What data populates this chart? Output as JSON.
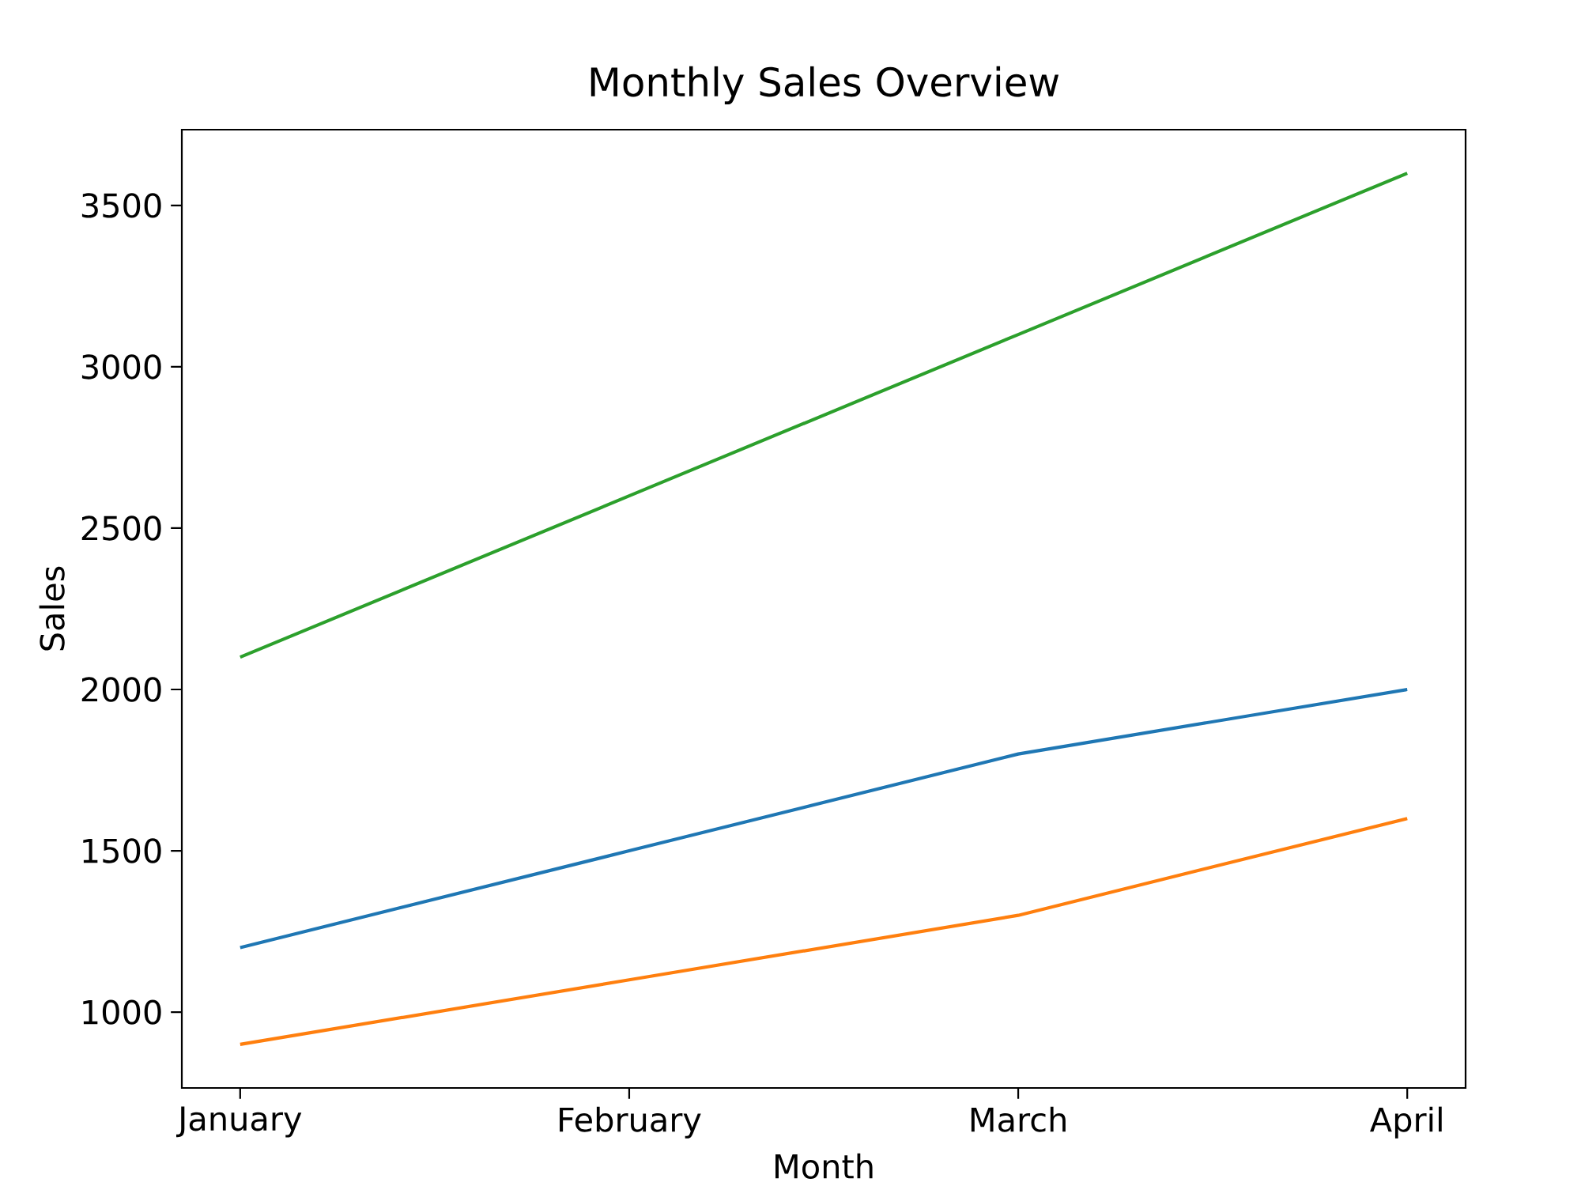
{
  "chart_data": {
    "type": "line",
    "title": "Monthly Sales Overview",
    "xlabel": "Month",
    "ylabel": "Sales",
    "categories": [
      "January",
      "February",
      "March",
      "April"
    ],
    "series": [
      {
        "color": "#1f77b4",
        "values": [
          1200,
          1500,
          1800,
          2000
        ]
      },
      {
        "color": "#ff7f0e",
        "values": [
          900,
          1100,
          1300,
          1600
        ]
      },
      {
        "color": "#2ca02c",
        "values": [
          2100,
          2600,
          3100,
          3600
        ]
      }
    ],
    "ylim": [
      765,
      3735
    ],
    "yticks": [
      1000,
      1500,
      2000,
      2500,
      3000,
      3500
    ],
    "grid": false
  }
}
